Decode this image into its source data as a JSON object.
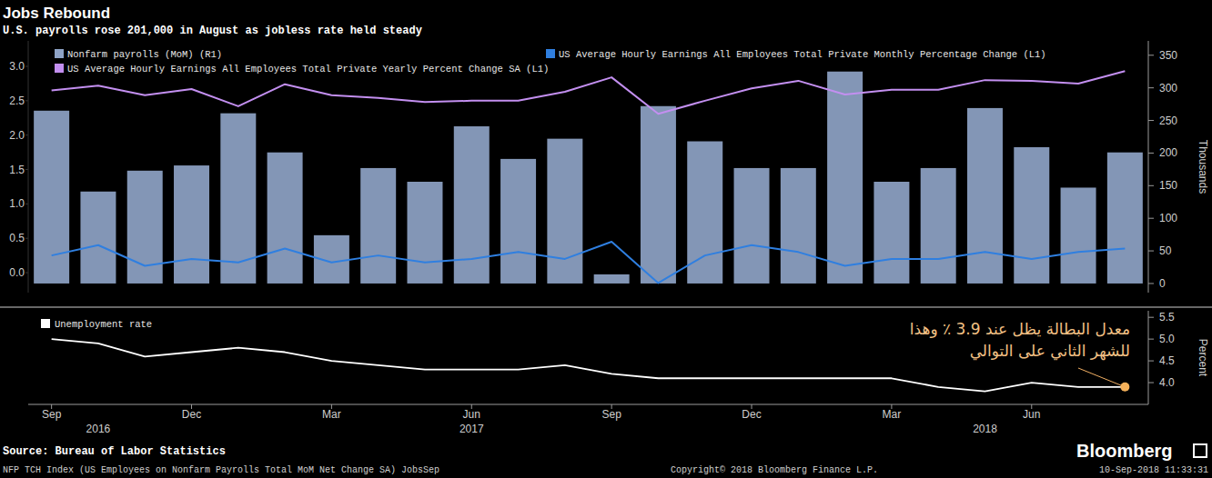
{
  "chart_data": [
    {
      "type": "bar",
      "title": "Jobs Rebound",
      "subtitle": "U.S. payrolls rose 201,000 in August as jobless rate held steady",
      "categories": [
        "Sep",
        null,
        null,
        "Dec",
        null,
        null,
        "Mar",
        null,
        null,
        "Jun",
        null,
        null,
        "Sep",
        null,
        null,
        "Dec",
        null,
        null,
        "Mar",
        null,
        null,
        "Jun",
        null,
        null
      ],
      "series": [
        {
          "name": "Nonfarm payrolls (MoM) (R1)",
          "type": "bar",
          "color": "#8ea3c6",
          "axis": "y2",
          "values": [
            265,
            141,
            173,
            181,
            261,
            201,
            74,
            177,
            156,
            241,
            191,
            222,
            14,
            272,
            218,
            177,
            177,
            325,
            156,
            177,
            269,
            209,
            147,
            201
          ]
        },
        {
          "name": "US Average Hourly Earnings All Employees Total Private Yearly Percent Change SA (L1)",
          "type": "line",
          "color": "#c38ff0",
          "values": [
            2.65,
            2.72,
            2.58,
            2.67,
            2.42,
            2.74,
            2.58,
            2.54,
            2.48,
            2.5,
            2.5,
            2.63,
            2.84,
            2.31,
            2.5,
            2.68,
            2.79,
            2.59,
            2.66,
            2.66,
            2.8,
            2.79,
            2.75,
            2.93
          ]
        },
        {
          "name": "US Average Hourly Earnings All Employees Total Private Monthly Percentage Change (L1)",
          "type": "line",
          "color": "#2f7fe0",
          "values": [
            0.25,
            0.4,
            0.1,
            0.2,
            0.15,
            0.35,
            0.15,
            0.25,
            0.15,
            0.2,
            0.3,
            0.2,
            0.45,
            -0.15,
            0.25,
            0.4,
            0.3,
            0.1,
            0.2,
            0.2,
            0.3,
            0.2,
            0.3,
            0.35
          ]
        }
      ],
      "ylim": [
        -0.29,
        3.37
      ],
      "yticks": [
        {
          "value": 0,
          "label": "0.0"
        },
        0.5,
        {
          "value": 1,
          "label": "1.0"
        },
        1.5,
        {
          "value": 2,
          "label": "2.0"
        },
        2.5,
        {
          "value": 3,
          "label": "3.0"
        }
      ],
      "y2lim": [
        -14,
        372
      ],
      "y2ticks": [
        0,
        50,
        100,
        150,
        200,
        250,
        300,
        350
      ],
      "y2_label": "Thousands",
      "grid": false,
      "legend": "top-left",
      "tick_labels": "y"
    },
    {
      "type": "line",
      "categories": [
        "Sep",
        null,
        null,
        "Dec",
        null,
        null,
        "Mar",
        null,
        null,
        "Jun",
        null,
        null,
        "Sep",
        null,
        null,
        "Dec",
        null,
        null,
        "Mar",
        null,
        null,
        "Jun",
        null,
        null
      ],
      "years": [
        null,
        "2016",
        null,
        null,
        null,
        null,
        null,
        null,
        null,
        "2017",
        null,
        null,
        null,
        null,
        null,
        null,
        null,
        null,
        null,
        null,
        "2018",
        null,
        null,
        null
      ],
      "series": [
        {
          "name": "Unemployment rate",
          "color": "#ffffff",
          "axis": "y2",
          "values": [
            5.0,
            4.9,
            4.6,
            4.7,
            4.8,
            4.7,
            4.5,
            4.4,
            4.3,
            4.3,
            4.3,
            4.4,
            4.2,
            4.1,
            4.1,
            4.1,
            4.1,
            4.1,
            4.1,
            3.9,
            3.8,
            4.0,
            3.9,
            3.9
          ]
        }
      ],
      "y2lim": [
        3.5,
        5.65
      ],
      "y2ticks": [
        {
          "value": 4,
          "label": "4.0"
        },
        {
          "value": 4.5,
          "label": "4.5"
        },
        {
          "value": 5,
          "label": "5.0"
        },
        {
          "value": 5.5,
          "label": "5.5"
        }
      ],
      "y2_label": "Percent",
      "grid": false,
      "legend": "top-left",
      "annotation": [
        "معدل البطالة يظل عند 3.9 ٪ وهذا",
        "للشهر الثاني على التوالي"
      ]
    }
  ],
  "footer": {
    "source": "Source: Bureau of Labor Statistics",
    "note": "NFP TCH Index (US Employees on Nonfarm Payrolls Total MoM Net Change SA) JobsSep",
    "copyright": "Copyright© 2018 Bloomberg Finance L.P.",
    "brand": "Bloomberg",
    "timestamp": "10-Sep-2018 11:33:31"
  }
}
